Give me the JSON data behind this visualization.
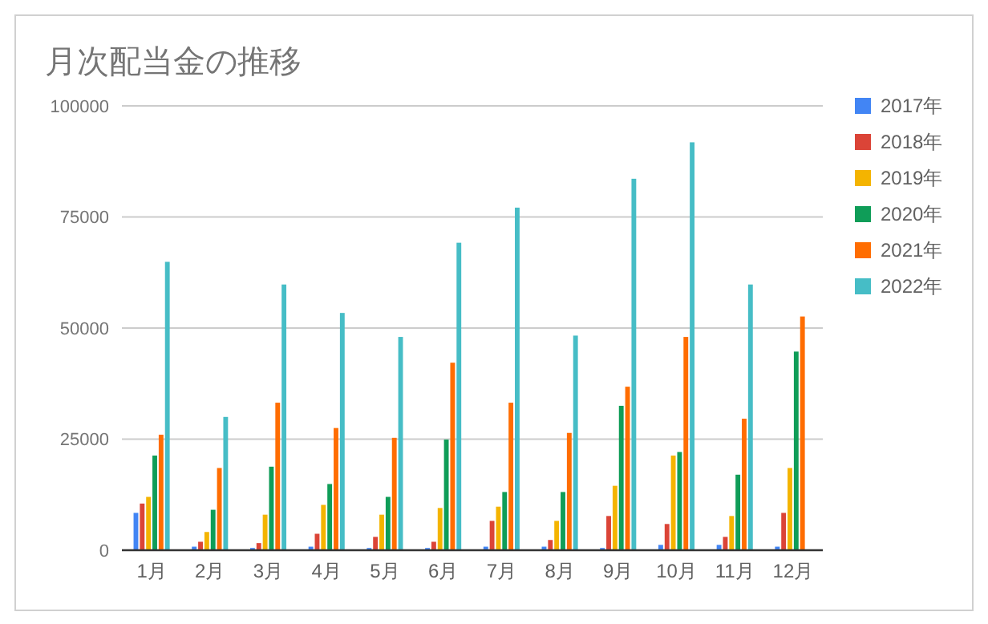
{
  "chart_data": {
    "type": "bar",
    "title": "月次配当金の推移",
    "categories": [
      "1月",
      "2月",
      "3月",
      "4月",
      "5月",
      "6月",
      "7月",
      "8月",
      "9月",
      "10月",
      "11月",
      "12月"
    ],
    "series": [
      {
        "name": "2017年",
        "color": "#4285f4",
        "values": [
          8400,
          800,
          500,
          800,
          500,
          500,
          800,
          800,
          500,
          1200,
          1200,
          800
        ]
      },
      {
        "name": "2018年",
        "color": "#db4437",
        "values": [
          10500,
          1900,
          1600,
          3700,
          3000,
          1900,
          6600,
          2300,
          7700,
          5900,
          3000,
          8400
        ]
      },
      {
        "name": "2019年",
        "color": "#f4b400",
        "values": [
          12000,
          4100,
          8000,
          10200,
          8000,
          9500,
          9800,
          6600,
          14500,
          21300,
          7700,
          18500
        ]
      },
      {
        "name": "2020年",
        "color": "#0f9d58",
        "values": [
          21300,
          9100,
          18800,
          14900,
          12000,
          24900,
          13100,
          13100,
          32500,
          22100,
          17000,
          44700
        ]
      },
      {
        "name": "2021年",
        "color": "#ff6d01",
        "values": [
          26000,
          18500,
          33200,
          27500,
          25300,
          42200,
          33200,
          26400,
          36800,
          48000,
          29600,
          52600
        ]
      },
      {
        "name": "2022年",
        "color": "#46bdc6",
        "values": [
          64900,
          30000,
          59800,
          53400,
          48000,
          69200,
          77100,
          48300,
          83600,
          91800,
          59800,
          null
        ]
      }
    ],
    "ylim": [
      0,
      100000
    ],
    "yticks": [
      0,
      25000,
      50000,
      75000,
      100000
    ],
    "grid": "y",
    "legend": "right"
  }
}
